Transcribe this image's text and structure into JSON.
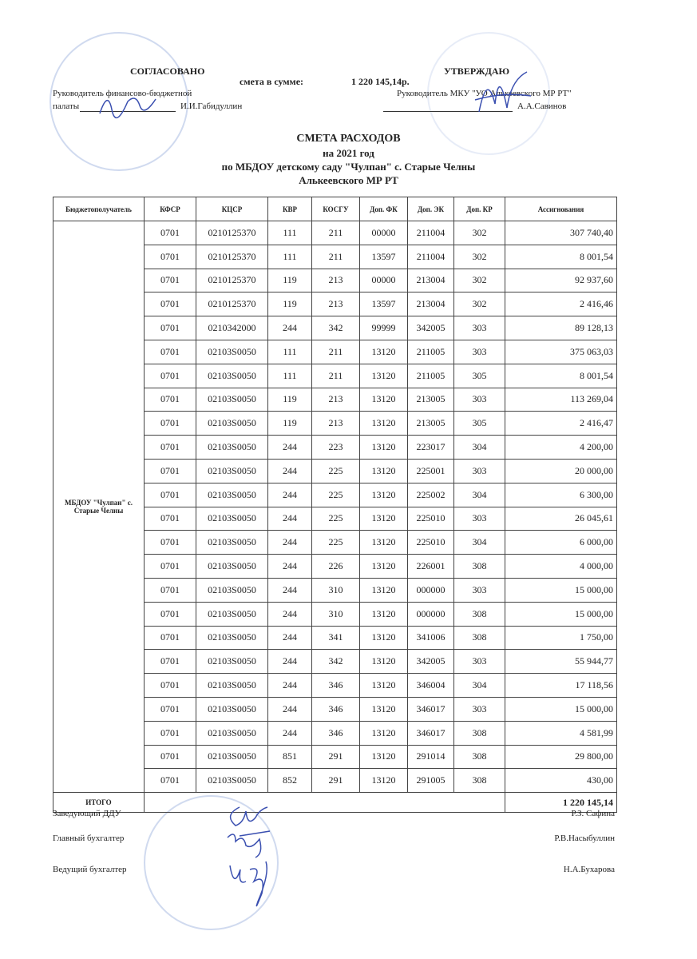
{
  "approval_left": {
    "heading": "СОГЛАСОВАНО",
    "position_line1": "Руководитель финансово-бюджетной",
    "position_line2": "палаты",
    "name": "И.И.Габидуллин"
  },
  "sum_line": {
    "label": "смета в сумме:",
    "value": "1 220 145,14р."
  },
  "approval_right": {
    "heading": "УТВЕРЖДАЮ",
    "position": "Руководитель МКУ \"УО Алькеевского МР РТ\"",
    "name": "А.А.Савинов"
  },
  "title": {
    "line1": "СМЕТА  РАСХОДОВ",
    "line2": "на 2021 год",
    "line3": "по МБДОУ детскому саду \"Чулпан\" с. Старые Челны",
    "line4": "Алькеевского МР РТ"
  },
  "table": {
    "headers": [
      "Бюджетополучатель",
      "КФСР",
      "КЦСР",
      "КВР",
      "КОСГУ",
      "Доп. ФК",
      "Доп. ЭК",
      "Доп. КР",
      "Ассигнования"
    ],
    "recipient": "МБДОУ \"Чулпан\"   с. Старые Челны",
    "rows": [
      [
        "0701",
        "0210125370",
        "111",
        "211",
        "00000",
        "211004",
        "302",
        "307 740,40"
      ],
      [
        "0701",
        "0210125370",
        "111",
        "211",
        "13597",
        "211004",
        "302",
        "8 001,54"
      ],
      [
        "0701",
        "0210125370",
        "119",
        "213",
        "00000",
        "213004",
        "302",
        "92 937,60"
      ],
      [
        "0701",
        "0210125370",
        "119",
        "213",
        "13597",
        "213004",
        "302",
        "2 416,46"
      ],
      [
        "0701",
        "0210342000",
        "244",
        "342",
        "99999",
        "342005",
        "303",
        "89 128,13"
      ],
      [
        "0701",
        "02103S0050",
        "111",
        "211",
        "13120",
        "211005",
        "303",
        "375 063,03"
      ],
      [
        "0701",
        "02103S0050",
        "111",
        "211",
        "13120",
        "211005",
        "305",
        "8 001,54"
      ],
      [
        "0701",
        "02103S0050",
        "119",
        "213",
        "13120",
        "213005",
        "303",
        "113 269,04"
      ],
      [
        "0701",
        "02103S0050",
        "119",
        "213",
        "13120",
        "213005",
        "305",
        "2 416,47"
      ],
      [
        "0701",
        "02103S0050",
        "244",
        "223",
        "13120",
        "223017",
        "304",
        "4 200,00"
      ],
      [
        "0701",
        "02103S0050",
        "244",
        "225",
        "13120",
        "225001",
        "303",
        "20 000,00"
      ],
      [
        "0701",
        "02103S0050",
        "244",
        "225",
        "13120",
        "225002",
        "304",
        "6 300,00"
      ],
      [
        "0701",
        "02103S0050",
        "244",
        "225",
        "13120",
        "225010",
        "303",
        "26 045,61"
      ],
      [
        "0701",
        "02103S0050",
        "244",
        "225",
        "13120",
        "225010",
        "304",
        "6 000,00"
      ],
      [
        "0701",
        "02103S0050",
        "244",
        "226",
        "13120",
        "226001",
        "308",
        "4 000,00"
      ],
      [
        "0701",
        "02103S0050",
        "244",
        "310",
        "13120",
        "000000",
        "303",
        "15 000,00"
      ],
      [
        "0701",
        "02103S0050",
        "244",
        "310",
        "13120",
        "000000",
        "308",
        "15 000,00"
      ],
      [
        "0701",
        "02103S0050",
        "244",
        "341",
        "13120",
        "341006",
        "308",
        "1 750,00"
      ],
      [
        "0701",
        "02103S0050",
        "244",
        "342",
        "13120",
        "342005",
        "303",
        "55 944,77"
      ],
      [
        "0701",
        "02103S0050",
        "244",
        "346",
        "13120",
        "346004",
        "304",
        "17 118,56"
      ],
      [
        "0701",
        "02103S0050",
        "244",
        "346",
        "13120",
        "346017",
        "303",
        "15 000,00"
      ],
      [
        "0701",
        "02103S0050",
        "244",
        "346",
        "13120",
        "346017",
        "308",
        "4 581,99"
      ],
      [
        "0701",
        "02103S0050",
        "851",
        "291",
        "13120",
        "291014",
        "308",
        "29 800,00"
      ],
      [
        "0701",
        "02103S0050",
        "852",
        "291",
        "13120",
        "291005",
        "308",
        "430,00"
      ]
    ],
    "total_label": "ИТОГО",
    "total_value": "1 220 145,14"
  },
  "signatures": [
    {
      "position": "Заведующий ДДУ",
      "name": "Р.З. Сафина"
    },
    {
      "position": "Главный бухгалтер",
      "name": "Р.В.Насыбуллин"
    },
    {
      "position": "Ведущий бухгалтер",
      "name": "Н.А.Бухарова"
    }
  ],
  "colors": {
    "ink": "#222222",
    "signature": "#3a4fb0",
    "stamp": "#8fa6d8"
  }
}
